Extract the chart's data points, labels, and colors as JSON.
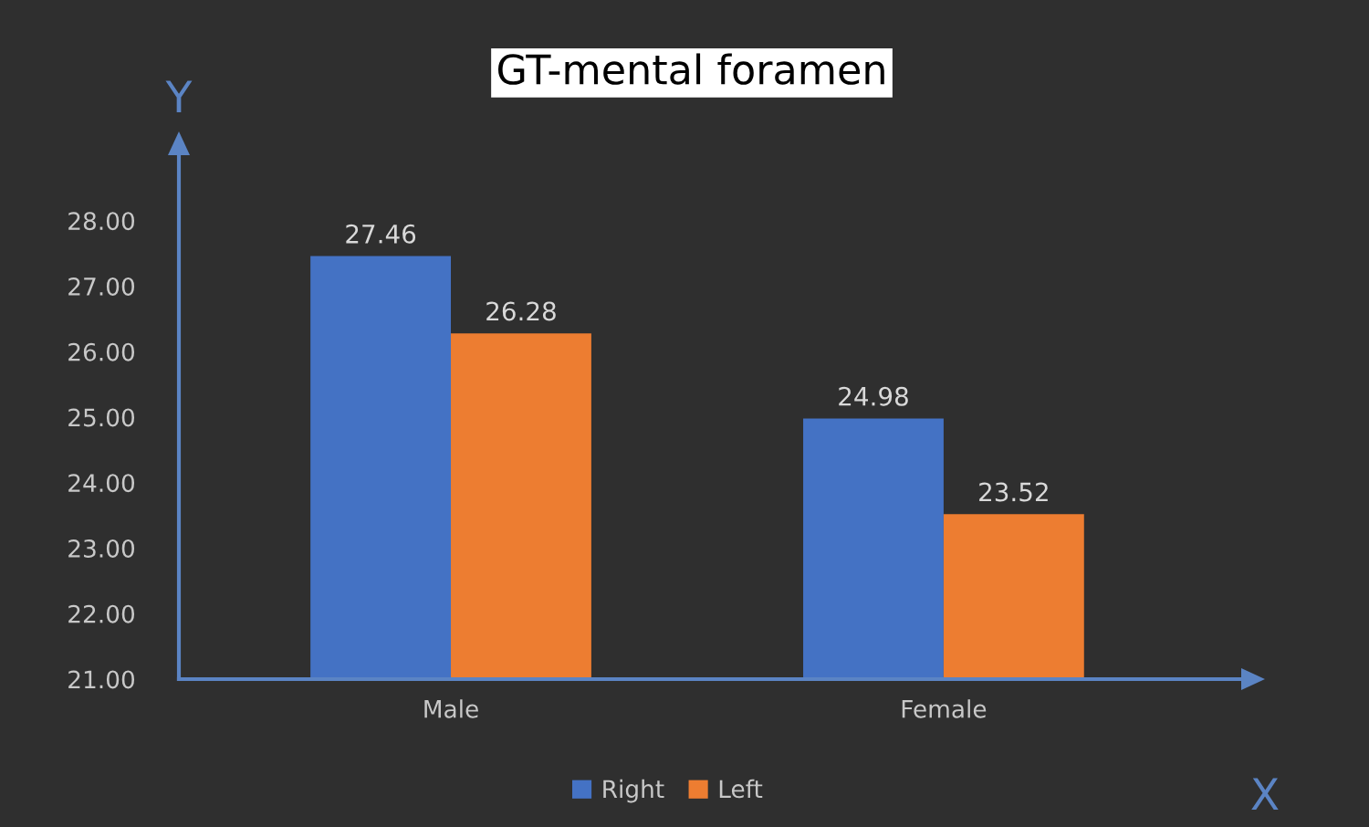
{
  "chart_data": {
    "type": "bar",
    "title": "GT-mental foramen",
    "xlabel": "X",
    "ylabel": "Y",
    "categories": [
      "Male",
      "Female"
    ],
    "series": [
      {
        "name": "Right",
        "color": "#4472c4",
        "values": [
          27.46,
          24.98
        ]
      },
      {
        "name": "Left",
        "color": "#ed7d31",
        "values": [
          26.28,
          23.52
        ]
      }
    ],
    "ylim": [
      21,
      29
    ],
    "yticks": [
      {
        "value": 21,
        "label": "21.00"
      },
      {
        "value": 22,
        "label": "22.00"
      },
      {
        "value": 23,
        "label": "23.00"
      },
      {
        "value": 24,
        "label": "24.00"
      },
      {
        "value": 25,
        "label": "25.00"
      },
      {
        "value": 26,
        "label": "26.00"
      },
      {
        "value": 27,
        "label": "27.00"
      },
      {
        "value": 28,
        "label": "28.00"
      }
    ],
    "data_labels": true,
    "legend": "bottom"
  }
}
